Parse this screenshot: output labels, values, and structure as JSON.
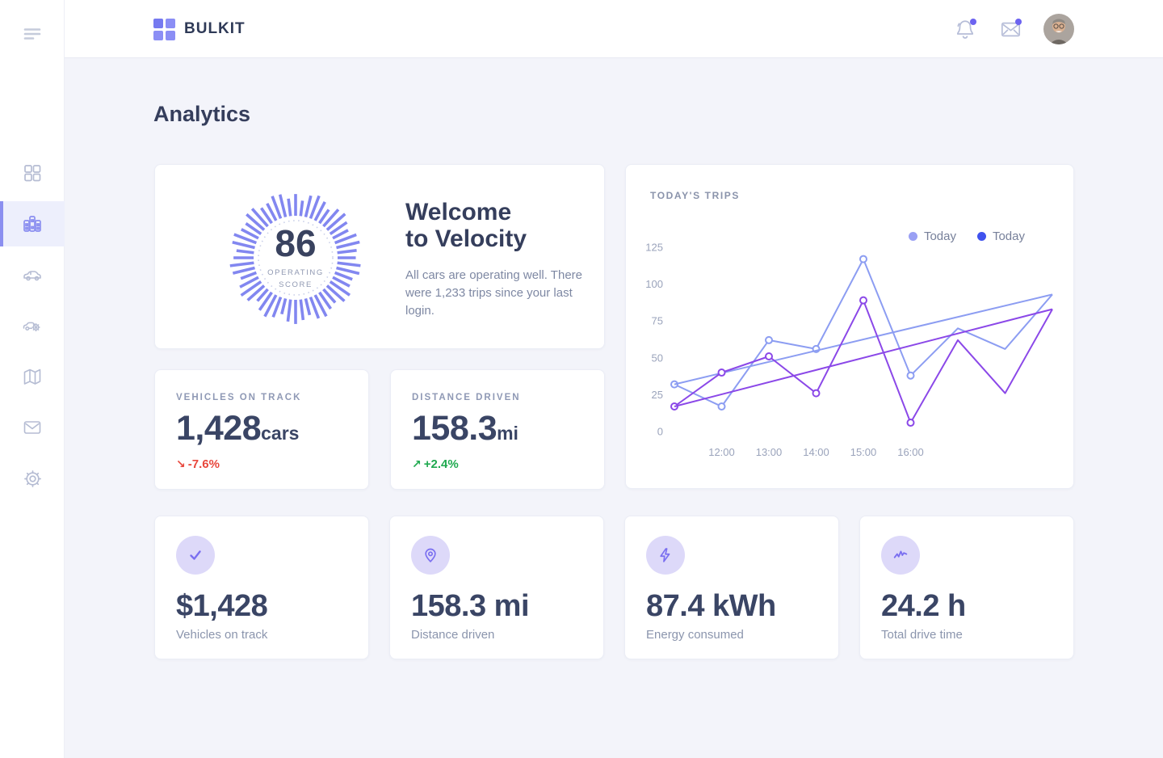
{
  "header": {
    "brand": "BULKIT",
    "notifications_badge": "unread",
    "messages_badge": "unread"
  },
  "page": {
    "title": "Analytics"
  },
  "colors": {
    "accent_purple": "#8b8ff0",
    "line_light": "#8c9df2",
    "line_violet": "#8b48e8",
    "negative_red": "#e8473c",
    "positive_green": "#1fa94f"
  },
  "welcome": {
    "score": "86",
    "score_label_line1": "OPERATING",
    "score_label_line2": "SCORE",
    "title_line1": "Welcome",
    "title_line2": "to Velocity",
    "body": "All cars are operating well. There were 1,233 trips since your last login."
  },
  "kpis": [
    {
      "label": "VEHICLES ON TRACK",
      "value": "1,428",
      "unit": "cars",
      "delta_arrow": "↘",
      "delta": "-7.6%",
      "delta_color": "#e8473c"
    },
    {
      "label": "DISTANCE DRIVEN",
      "value": "158.3",
      "unit": "mi",
      "delta_arrow": "↗",
      "delta": "+2.4%",
      "delta_color": "#1fa94f"
    }
  ],
  "chart_card": {
    "title": "TODAY'S TRIPS"
  },
  "chart_data": {
    "type": "line",
    "title": "TODAY'S TRIPS",
    "x_tick_labels": [
      "12:00",
      "13:00",
      "14:00",
      "15:00",
      "16:00"
    ],
    "x_tick_indices": [
      1,
      2,
      3,
      4,
      5
    ],
    "y_ticks": [
      0,
      25,
      50,
      75,
      100,
      125
    ],
    "ylim": [
      0,
      125
    ],
    "grid": false,
    "legend_position": "top-right",
    "legend": [
      {
        "label": "Today",
        "color": "#9aa0f4"
      },
      {
        "label": "Today",
        "color": "#4052ee"
      }
    ],
    "series": [
      {
        "name": "Today",
        "color": "#8c9df2",
        "markers_at": [
          0,
          1,
          2,
          3,
          4,
          5
        ],
        "points": [
          [
            0,
            32
          ],
          [
            1,
            17
          ],
          [
            2,
            62
          ],
          [
            3,
            56
          ],
          [
            4,
            117
          ],
          [
            5,
            38
          ],
          [
            6,
            70
          ],
          [
            7,
            56
          ],
          [
            8,
            93
          ]
        ]
      },
      {
        "name": "Today trend",
        "color": "#8c9df2",
        "markers_at": [],
        "points": [
          [
            0,
            32
          ],
          [
            8,
            93
          ]
        ]
      },
      {
        "name": "Today",
        "color": "#8b48e8",
        "markers_at": [
          0,
          1,
          2,
          3,
          4,
          5
        ],
        "points": [
          [
            0,
            17
          ],
          [
            1,
            40
          ],
          [
            2,
            51
          ],
          [
            3,
            26
          ],
          [
            4,
            89
          ],
          [
            5,
            6
          ],
          [
            6,
            62
          ],
          [
            7,
            26
          ],
          [
            8,
            83
          ]
        ]
      },
      {
        "name": "Today trend",
        "color": "#8b48e8",
        "markers_at": [],
        "points": [
          [
            0,
            17
          ],
          [
            8,
            83
          ]
        ]
      }
    ]
  },
  "stats": [
    {
      "icon": "check-icon",
      "value": "$1,428",
      "label": "Vehicles on track"
    },
    {
      "icon": "map-pin-icon",
      "value": "158.3 mi",
      "label": "Distance driven"
    },
    {
      "icon": "lightning-icon",
      "value": "87.4 kWh",
      "label": "Energy consumed"
    },
    {
      "icon": "pulse-icon",
      "value": "24.2 h",
      "label": "Total drive time"
    }
  ]
}
